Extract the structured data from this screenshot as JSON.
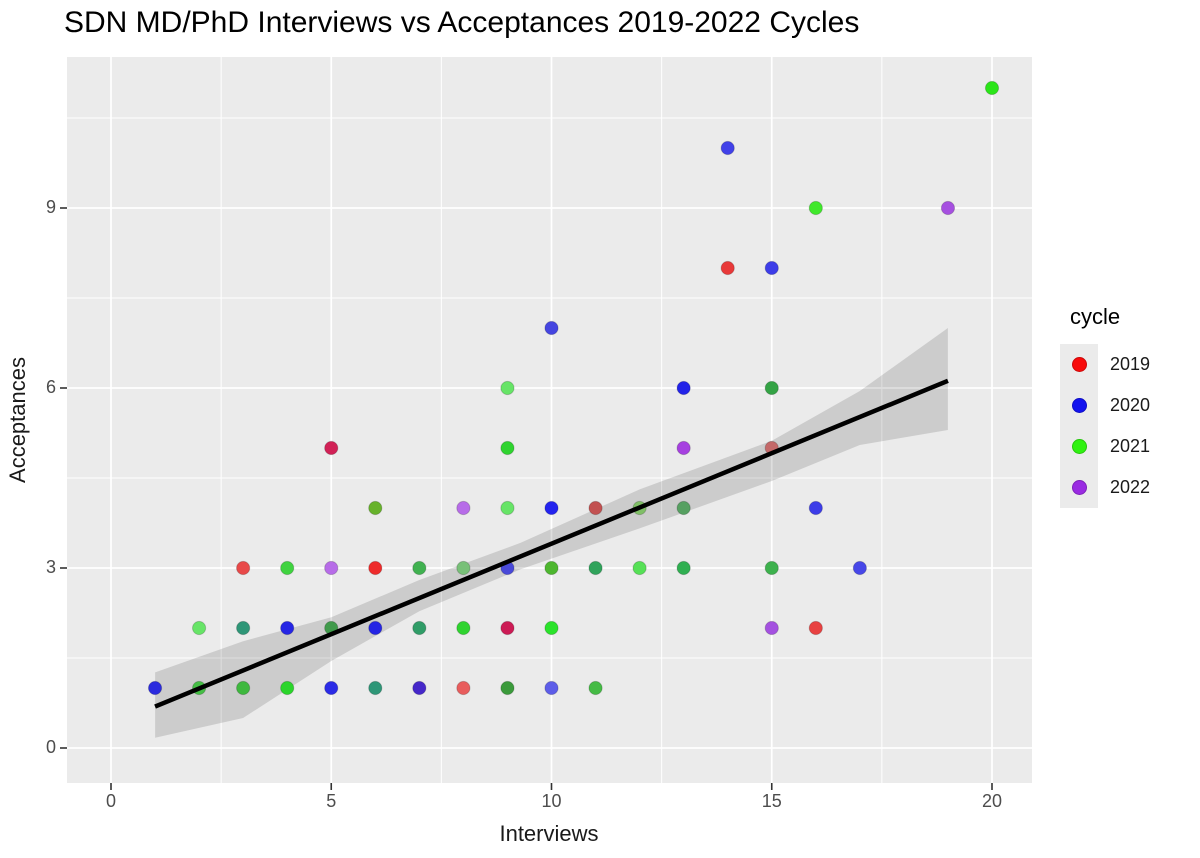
{
  "chart_data": {
    "type": "scatter",
    "title": "SDN MD/PhD Interviews vs Acceptances 2019-2022 Cycles",
    "xlabel": "Interviews",
    "ylabel": "Acceptances",
    "x_ticks": [
      0,
      5,
      10,
      15,
      20
    ],
    "y_ticks": [
      0,
      3,
      6,
      9
    ],
    "x_minor": [
      2.5,
      7.5,
      12.5,
      17.5
    ],
    "y_minor": [
      1.5,
      4.5,
      7.5,
      10.5
    ],
    "x_range": [
      -1,
      20.9
    ],
    "y_range": [
      -0.6,
      11.5
    ],
    "grid": true,
    "panel_bg": "#ebebeb",
    "grid_color": "#ffffff",
    "legend": {
      "title": "cycle",
      "position": "right",
      "items": [
        {
          "label": "2019",
          "color": "#f80b0b"
        },
        {
          "label": "2020",
          "color": "#1212ef"
        },
        {
          "label": "2021",
          "color": "#30f211"
        },
        {
          "label": "2022",
          "color": "#9a2be2"
        }
      ]
    },
    "points": [
      {
        "x": 1,
        "y": 1,
        "cycle": "2020",
        "color": "#2b2bde"
      },
      {
        "x": 2,
        "y": 1,
        "cycle": "2021",
        "color": "#45be45"
      },
      {
        "x": 3,
        "y": 1,
        "cycle": "2021",
        "color": "#3eb83e"
      },
      {
        "x": 4,
        "y": 1,
        "cycle": "2021",
        "color": "#2bd52b"
      },
      {
        "x": 5,
        "y": 1,
        "cycle": "2020",
        "color": "#2b2be6"
      },
      {
        "x": 6,
        "y": 1,
        "cycle": "2020+2021",
        "color": "#2e9677"
      },
      {
        "x": 7,
        "y": 1,
        "cycle": "2020+2022",
        "color": "#4527c9"
      },
      {
        "x": 8,
        "y": 1,
        "cycle": "2019",
        "color": "#e85d5d"
      },
      {
        "x": 9,
        "y": 1,
        "cycle": "2021",
        "color": "#3b9a3b"
      },
      {
        "x": 10,
        "y": 1,
        "cycle": "2020",
        "color": "#5d5de8"
      },
      {
        "x": 11,
        "y": 1,
        "cycle": "2021",
        "color": "#45bb45"
      },
      {
        "x": 2,
        "y": 2,
        "cycle": "2021",
        "color": "#67e467"
      },
      {
        "x": 3,
        "y": 2,
        "cycle": "2020+2021",
        "color": "#2e9677"
      },
      {
        "x": 4,
        "y": 2,
        "cycle": "2020",
        "color": "#2525e4"
      },
      {
        "x": 5,
        "y": 2,
        "cycle": "2021",
        "color": "#409a4b"
      },
      {
        "x": 6,
        "y": 2,
        "cycle": "2020",
        "color": "#2525e4"
      },
      {
        "x": 7,
        "y": 2,
        "cycle": "2020+2021",
        "color": "#309c67"
      },
      {
        "x": 8,
        "y": 2,
        "cycle": "2021",
        "color": "#2fd32f"
      },
      {
        "x": 9,
        "y": 2,
        "cycle": "2019+2022",
        "color": "#cc1b55"
      },
      {
        "x": 10,
        "y": 2,
        "cycle": "2021",
        "color": "#2be22b"
      },
      {
        "x": 15,
        "y": 2,
        "cycle": "2022",
        "color": "#a451e0"
      },
      {
        "x": 16,
        "y": 2,
        "cycle": "2019",
        "color": "#e84141"
      },
      {
        "x": 3,
        "y": 3,
        "cycle": "2019",
        "color": "#e84949"
      },
      {
        "x": 4,
        "y": 3,
        "cycle": "2021",
        "color": "#40d340"
      },
      {
        "x": 5,
        "y": 3,
        "cycle": "2022",
        "color": "#b76ce8"
      },
      {
        "x": 6,
        "y": 3,
        "cycle": "2019",
        "color": "#ee2b2b"
      },
      {
        "x": 7,
        "y": 3,
        "cycle": "2021",
        "color": "#40b150"
      },
      {
        "x": 8,
        "y": 3,
        "cycle": "2021",
        "color": "#78c078"
      },
      {
        "x": 9,
        "y": 3,
        "cycle": "2020",
        "color": "#4949d8"
      },
      {
        "x": 10,
        "y": 3,
        "cycle": "2021",
        "color": "#4db62f"
      },
      {
        "x": 11,
        "y": 3,
        "cycle": "2021",
        "color": "#30a35b"
      },
      {
        "x": 12,
        "y": 3,
        "cycle": "2021",
        "color": "#56e056"
      },
      {
        "x": 13,
        "y": 3,
        "cycle": "2021",
        "color": "#30af51"
      },
      {
        "x": 15,
        "y": 3,
        "cycle": "2021",
        "color": "#3db14d"
      },
      {
        "x": 17,
        "y": 3,
        "cycle": "2020",
        "color": "#4747e8"
      },
      {
        "x": 6,
        "y": 4,
        "cycle": "2019+2021",
        "color": "#67b22b"
      },
      {
        "x": 8,
        "y": 4,
        "cycle": "2022",
        "color": "#b76ce8"
      },
      {
        "x": 9,
        "y": 4,
        "cycle": "2021",
        "color": "#67e467"
      },
      {
        "x": 10,
        "y": 4,
        "cycle": "2020",
        "color": "#2323ee"
      },
      {
        "x": 11,
        "y": 4,
        "cycle": "2019",
        "color": "#c25151"
      },
      {
        "x": 12,
        "y": 4,
        "cycle": "2021",
        "color": "#80bf67"
      },
      {
        "x": 13,
        "y": 4,
        "cycle": "2021",
        "color": "#56a061"
      },
      {
        "x": 16,
        "y": 4,
        "cycle": "2020",
        "color": "#3d3de8"
      },
      {
        "x": 5,
        "y": 5,
        "cycle": "2019+2022",
        "color": "#d12156"
      },
      {
        "x": 9,
        "y": 5,
        "cycle": "2021",
        "color": "#2fd32f"
      },
      {
        "x": 13,
        "y": 5,
        "cycle": "2022",
        "color": "#a640e0"
      },
      {
        "x": 15,
        "y": 5,
        "cycle": "2019",
        "color": "#c46969"
      },
      {
        "x": 9,
        "y": 6,
        "cycle": "2021",
        "color": "#67e467"
      },
      {
        "x": 13,
        "y": 6,
        "cycle": "2020",
        "color": "#2323e8"
      },
      {
        "x": 15,
        "y": 6,
        "cycle": "2021",
        "color": "#34a345"
      },
      {
        "x": 10,
        "y": 7,
        "cycle": "2020",
        "color": "#4545e0"
      },
      {
        "x": 14,
        "y": 8,
        "cycle": "2019",
        "color": "#e83939"
      },
      {
        "x": 15,
        "y": 8,
        "cycle": "2020",
        "color": "#3d3de8"
      },
      {
        "x": 16,
        "y": 9,
        "cycle": "2021",
        "color": "#40e82b"
      },
      {
        "x": 19,
        "y": 9,
        "cycle": "2022",
        "color": "#a650e0"
      },
      {
        "x": 14,
        "y": 10,
        "cycle": "2020",
        "color": "#4141e8"
      },
      {
        "x": 20,
        "y": 11,
        "cycle": "2021",
        "color": "#2be519"
      }
    ],
    "smooth": {
      "line": {
        "color": "#000000",
        "width": 4.5,
        "from": [
          1,
          0.69
        ],
        "to": [
          19,
          6.12
        ]
      },
      "band": {
        "color": "rgba(0,0,0,0.13)",
        "upper": [
          [
            1,
            1.26
          ],
          [
            3,
            1.78
          ],
          [
            5,
            2.18
          ],
          [
            7,
            2.8
          ],
          [
            9.3,
            3.42
          ],
          [
            12,
            4.31
          ],
          [
            15,
            5.12
          ],
          [
            17,
            5.95
          ],
          [
            19,
            7.0
          ]
        ],
        "lower": [
          [
            1,
            0.17
          ],
          [
            3,
            0.5
          ],
          [
            5,
            1.45
          ],
          [
            7,
            2.28
          ],
          [
            9.3,
            2.98
          ],
          [
            12,
            3.66
          ],
          [
            15,
            4.45
          ],
          [
            17,
            5.05
          ],
          [
            19,
            5.3
          ]
        ]
      }
    }
  }
}
